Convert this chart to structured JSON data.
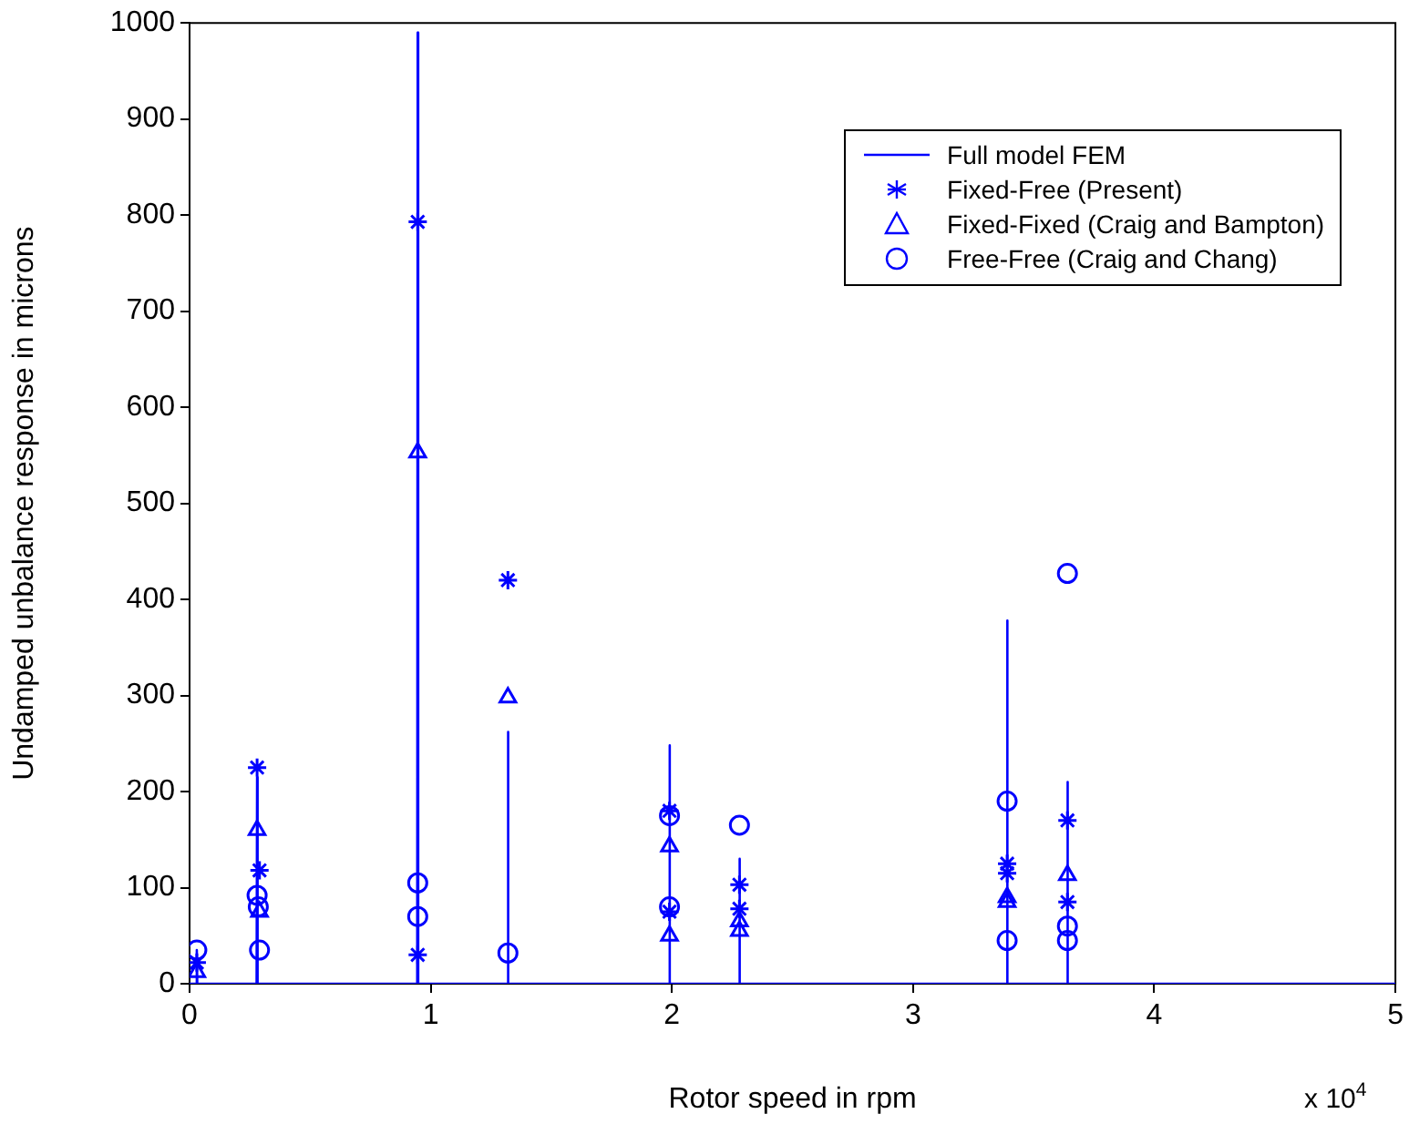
{
  "chart_data": {
    "type": "line",
    "xlabel": "Rotor speed in rpm",
    "ylabel": "Undamped unbalance response in microns",
    "xlim": [
      0,
      5
    ],
    "xticks": [
      0,
      1,
      2,
      3,
      4,
      5
    ],
    "ylim": [
      0,
      1000
    ],
    "yticks": [
      0,
      100,
      200,
      300,
      400,
      500,
      600,
      700,
      800,
      900,
      1000
    ],
    "grid": false,
    "legend": "top right",
    "annotations": [
      "x 10$^{4}$"
    ],
    "series": [
      {
        "name": "Full model FEM",
        "marker": "none",
        "line_style": "solid",
        "color": "#0000ff",
        "x": [
          0,
          0.028,
          0.03,
          0.032,
          0.278,
          0.28,
          0.282,
          0.944,
          0.946,
          0.948,
          1.318,
          1.32,
          1.322,
          1.988,
          1.99,
          1.992,
          2.278,
          2.28,
          2.282,
          3.388,
          3.39,
          3.392,
          3.638,
          3.64,
          3.642,
          5
        ],
        "values": [
          0,
          0,
          35,
          0,
          0,
          215,
          0,
          0,
          990,
          0,
          0,
          262,
          0,
          0,
          248,
          0,
          0,
          130,
          0,
          0,
          378,
          0,
          0,
          210,
          0,
          0
        ]
      },
      {
        "name": "Fixed-Free (Present)",
        "type": "scatter",
        "marker": "cross",
        "color": "#0000fe",
        "x": [
          0.03,
          0.28,
          0.29,
          0.946,
          0.946,
          1.32,
          1.99,
          1.99,
          2.28,
          2.28,
          3.39,
          3.39,
          3.64,
          3.64
        ],
        "values": [
          22,
          225,
          118,
          793,
          30,
          420,
          180,
          75,
          103,
          78,
          125,
          115,
          170,
          85
        ]
      },
      {
        "name": "Fixed-Fixed (Craig and Bampton)",
        "type": "scatter",
        "marker": "triangle",
        "color": "#0101ff",
        "x": [
          0.03,
          0.28,
          0.29,
          0.946,
          1.32,
          1.99,
          1.99,
          2.28,
          2.28,
          3.39,
          3.39,
          3.64
        ],
        "values": [
          12,
          160,
          75,
          553,
          298,
          143,
          50,
          65,
          55,
          90,
          85,
          113
        ]
      },
      {
        "name": "Free-Free (Craig and Chang)",
        "type": "scatter",
        "marker": "circle",
        "color": "#0000fd",
        "x": [
          0.03,
          0.28,
          0.285,
          0.29,
          0.946,
          0.946,
          1.32,
          1.99,
          1.99,
          2.28,
          3.39,
          3.39,
          3.64,
          3.64,
          3.64
        ],
        "values": [
          35,
          92,
          80,
          35,
          105,
          70,
          32,
          175,
          80,
          165,
          190,
          45,
          427,
          60,
          45
        ]
      }
    ]
  }
}
